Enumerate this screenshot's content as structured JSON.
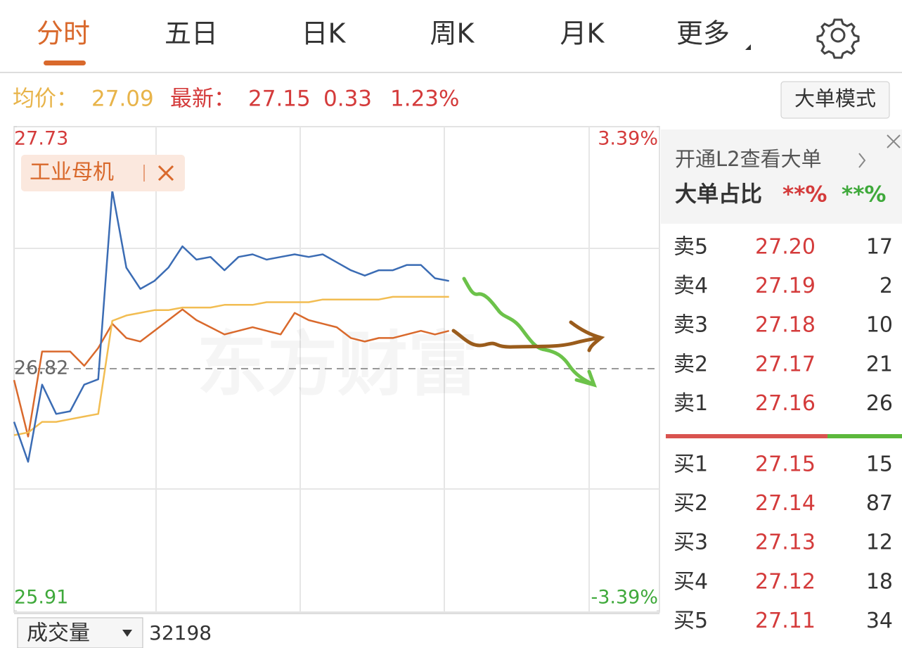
{
  "tabs": [
    "分时",
    "五日",
    "日K",
    "周K",
    "月K",
    "更多"
  ],
  "info": {
    "avg_label": "均价：",
    "avg": "27.09",
    "latest_label": "最新：",
    "latest": "27.15",
    "change": "0.33",
    "change_pct": "1.23%"
  },
  "mode_button": "大单模式",
  "chart_data": {
    "type": "line",
    "watermark": "东方财富",
    "ylim": [
      25.91,
      27.73
    ],
    "yticks": [
      25.91,
      26.82,
      27.73
    ],
    "y2lim": [
      -3.39,
      3.39
    ],
    "y2ticks": [
      {
        "value": -3.39,
        "label": "-3.39%"
      },
      {
        "value": 3.39,
        "label": "3.39%"
      }
    ],
    "series": [
      {
        "color": "#3b6cb4",
        "values": [
          26.62,
          26.47,
          26.76,
          26.65,
          26.66,
          26.76,
          26.78,
          27.49,
          27.2,
          27.12,
          27.15,
          27.2,
          27.28,
          27.23,
          27.24,
          27.19,
          27.24,
          27.25,
          27.23,
          27.24,
          27.25,
          27.24,
          27.25,
          27.22,
          27.19,
          27.17,
          27.19,
          27.19,
          27.21,
          27.21,
          27.16,
          27.15
        ]
      },
      {
        "color": "#f2bd52",
        "values": [
          26.57,
          26.58,
          26.62,
          26.62,
          26.63,
          26.64,
          26.65,
          27.0,
          27.02,
          27.03,
          27.04,
          27.04,
          27.05,
          27.05,
          27.05,
          27.06,
          27.06,
          27.06,
          27.07,
          27.07,
          27.07,
          27.07,
          27.08,
          27.08,
          27.08,
          27.08,
          27.08,
          27.09,
          27.09,
          27.09,
          27.09,
          27.09
        ]
      },
      {
        "name": "工业母机",
        "color": "#d9692c",
        "axis": "y2",
        "values": [
          -0.16,
          -0.95,
          0.24,
          0.24,
          0.24,
          0.04,
          0.29,
          0.63,
          0.43,
          0.38,
          0.53,
          0.68,
          0.83,
          0.68,
          0.58,
          0.48,
          0.53,
          0.58,
          0.53,
          0.48,
          0.78,
          0.68,
          0.63,
          0.58,
          0.43,
          0.38,
          0.43,
          0.43,
          0.48,
          0.53,
          0.48,
          0.53
        ]
      }
    ]
  },
  "volume": {
    "label": "成交量",
    "value": "32198"
  },
  "order_book": {
    "promo": "开通L2查看大单",
    "ratio_label": "大单占比",
    "buy_ratio": "**%",
    "sell_ratio": "**%",
    "asks": [
      {
        "level": "卖5",
        "price": "27.20",
        "volume": "17"
      },
      {
        "level": "卖4",
        "price": "27.19",
        "volume": "2"
      },
      {
        "level": "卖3",
        "price": "27.18",
        "volume": "10"
      },
      {
        "level": "卖2",
        "price": "27.17",
        "volume": "21"
      },
      {
        "level": "卖1",
        "price": "27.16",
        "volume": "26"
      }
    ],
    "bids": [
      {
        "level": "买1",
        "price": "27.15",
        "volume": "15"
      },
      {
        "level": "买2",
        "price": "27.14",
        "volume": "87"
      },
      {
        "level": "买3",
        "price": "27.13",
        "volume": "12"
      },
      {
        "level": "买4",
        "price": "27.12",
        "volume": "18"
      },
      {
        "level": "买5",
        "price": "27.11",
        "volume": "34"
      }
    ]
  }
}
